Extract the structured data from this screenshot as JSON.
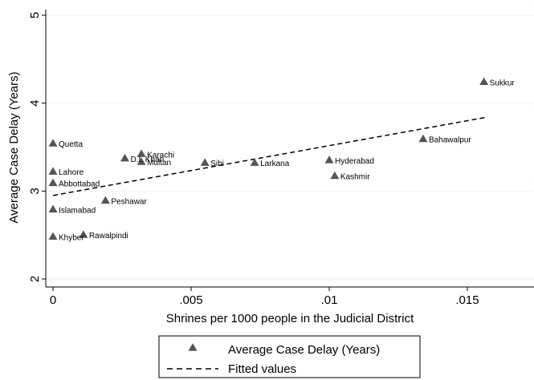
{
  "chart_data": {
    "type": "scatter",
    "xlabel": "Shrines per 1000 people in the Judicial District",
    "ylabel": "Average Case Delay (Years)",
    "xlim": [
      0,
      0.0173
    ],
    "ylim": [
      1.95,
      5.05
    ],
    "x_ticks": [
      0,
      0.005,
      0.01,
      0.015
    ],
    "x_tick_labels": [
      "0",
      ".005",
      ".01",
      ".015"
    ],
    "y_ticks": [
      2,
      3,
      4,
      5
    ],
    "y_tick_labels": [
      "2",
      "3",
      "4",
      "5"
    ],
    "grid": "horizontal",
    "legend_position": "bottom",
    "series": [
      {
        "name": "Average Case Delay (Years)",
        "marker": "triangle",
        "color": "#555555",
        "points": [
          {
            "label": "Quetta",
            "x": 0.0,
            "y": 3.54
          },
          {
            "label": "Lahore",
            "x": 0.0,
            "y": 3.22
          },
          {
            "label": "Abbottabad",
            "x": 0.0,
            "y": 3.09
          },
          {
            "label": "Islamabad",
            "x": 0.0,
            "y": 2.79
          },
          {
            "label": "Khyber",
            "x": 0.0,
            "y": 2.48
          },
          {
            "label": "Rawalpindi",
            "x": 0.0011,
            "y": 2.5
          },
          {
            "label": "Peshawar",
            "x": 0.0019,
            "y": 2.89
          },
          {
            "label": "D.I. Khan",
            "x": 0.0026,
            "y": 3.37
          },
          {
            "label": "Karachi",
            "x": 0.0032,
            "y": 3.42
          },
          {
            "label": "Multan",
            "x": 0.0032,
            "y": 3.33
          },
          {
            "label": "Sibi",
            "x": 0.0055,
            "y": 3.32
          },
          {
            "label": "Larkana",
            "x": 0.0073,
            "y": 3.32
          },
          {
            "label": "Hyderabad",
            "x": 0.01,
            "y": 3.35
          },
          {
            "label": "Kashmir",
            "x": 0.0102,
            "y": 3.17
          },
          {
            "label": "Bahawalpur",
            "x": 0.0134,
            "y": 3.59
          },
          {
            "label": "Sukkur",
            "x": 0.0156,
            "y": 4.24
          }
        ]
      },
      {
        "name": "Fitted values",
        "type": "line",
        "style": "dashed",
        "color": "#000000",
        "x": [
          0.0,
          0.0157
        ],
        "y": [
          2.95,
          3.84
        ]
      }
    ]
  }
}
